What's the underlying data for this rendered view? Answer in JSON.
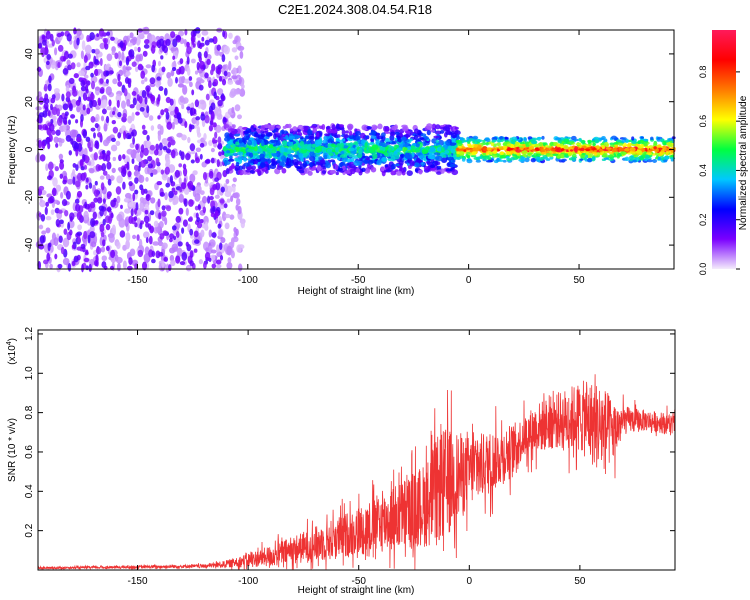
{
  "figure_title": "C2E1.2024.308.04.54.R18",
  "chart_data": [
    {
      "type": "heatmap",
      "title": "",
      "xlabel": "Height of straight line (km)",
      "ylabel": "Frequency (Hz)",
      "xlim": [
        -195,
        93
      ],
      "ylim": [
        -50,
        50
      ],
      "xticks": [
        -150,
        -100,
        -50,
        0,
        50
      ],
      "yticks": [
        -40,
        -20,
        0,
        20,
        40
      ],
      "colorbar": {
        "label": "Normalized spectral amplitude",
        "range": [
          0,
          0.97
        ],
        "ticks": [
          0.0,
          0.2,
          0.4,
          0.6,
          0.8
        ],
        "tick_labels": [
          "0.0",
          "0.2",
          "0.4",
          "0.6",
          "0.8"
        ],
        "colormap": [
          "#f4ecfb",
          "#7a00ff",
          "#0000ff",
          "#00c8ff",
          "#00ff40",
          "#ffff00",
          "#ff7a00",
          "#ff0000",
          "#ff1a5a"
        ]
      },
      "grid": false,
      "description_bands": [
        {
          "x": [
            -195,
            -110
          ],
          "freq_spread": [
            -50,
            50
          ],
          "amplitude": 0.1
        },
        {
          "x": [
            -110,
            -5
          ],
          "freq_spread": [
            -10,
            10
          ],
          "amplitude": 0.35
        },
        {
          "x": [
            -5,
            93
          ],
          "freq_spread": [
            -4,
            4
          ],
          "amplitude": 0.9
        }
      ]
    },
    {
      "type": "line",
      "title": "",
      "xlabel": "Height of straight line (km)",
      "ylabel": "SNR (10 * v/v)",
      "y_multiplier_label": "(x10",
      "y_multiplier_exp": "4",
      "xlim": [
        -195,
        93
      ],
      "ylim": [
        0,
        1.22
      ],
      "xticks": [
        -150,
        -100,
        -50,
        0,
        50
      ],
      "yticks": [
        0.2,
        0.4,
        0.6,
        0.8,
        1.0,
        1.2
      ],
      "ytick_labels": [
        "0.2",
        "0.4",
        "0.6",
        "0.8",
        "1.0",
        "1.2"
      ],
      "series_color": "#ee3333",
      "envelope": {
        "x": [
          -195,
          -150,
          -120,
          -110,
          -100,
          -90,
          -80,
          -70,
          -60,
          -50,
          -40,
          -30,
          -20,
          -15,
          -10,
          -5,
          0,
          10,
          20,
          25,
          30,
          40,
          50,
          55,
          60,
          65,
          70,
          80,
          93
        ],
        "mean": [
          0.01,
          0.015,
          0.02,
          0.03,
          0.05,
          0.07,
          0.1,
          0.13,
          0.16,
          0.2,
          0.24,
          0.28,
          0.33,
          0.4,
          0.45,
          0.48,
          0.5,
          0.55,
          0.62,
          0.68,
          0.72,
          0.76,
          0.78,
          0.75,
          0.72,
          0.7,
          0.76,
          0.76,
          0.74
        ],
        "spread": [
          0.005,
          0.008,
          0.01,
          0.02,
          0.04,
          0.06,
          0.08,
          0.1,
          0.12,
          0.14,
          0.17,
          0.2,
          0.24,
          0.3,
          0.32,
          0.25,
          0.2,
          0.18,
          0.14,
          0.12,
          0.14,
          0.16,
          0.2,
          0.24,
          0.26,
          0.18,
          0.08,
          0.06,
          0.06
        ]
      }
    }
  ]
}
